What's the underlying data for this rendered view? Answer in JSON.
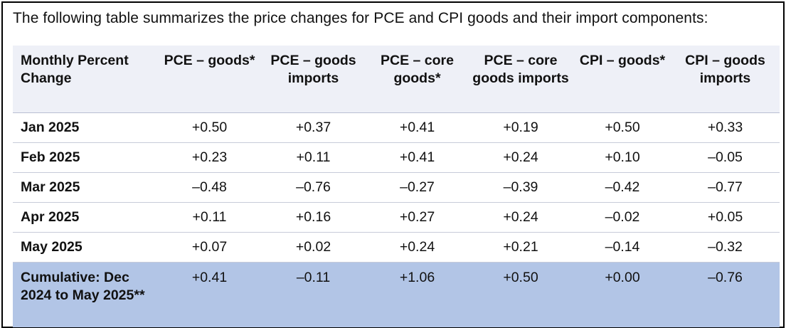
{
  "intro": "The following table summarizes the price changes for PCE and CPI goods and their import components:",
  "table": {
    "headers": [
      "Monthly Percent Change",
      "PCE – goods*",
      "PCE – goods imports",
      "PCE – core goods*",
      "PCE – core goods imports",
      "CPI – goods*",
      "CPI – goods imports"
    ],
    "rows": [
      [
        "Jan 2025",
        "+0.50",
        "+0.37",
        "+0.41",
        "+0.19",
        "+0.50",
        "+0.33"
      ],
      [
        "Feb 2025",
        "+0.23",
        "+0.11",
        "+0.41",
        "+0.24",
        "+0.10",
        "–0.05"
      ],
      [
        "Mar 2025",
        "–0.48",
        "–0.76",
        "–0.27",
        "–0.39",
        "–0.42",
        "–0.77"
      ],
      [
        "Apr 2025",
        "+0.11",
        "+0.16",
        "+0.27",
        "+0.24",
        "–0.02",
        "+0.05"
      ],
      [
        "May 2025",
        "+0.07",
        "+0.02",
        "+0.24",
        "+0.21",
        "–0.14",
        "–0.32"
      ],
      [
        "Cumulative: Dec 2024 to May 2025**",
        "+0.41",
        "–0.11",
        "+1.06",
        "+0.50",
        "+0.00",
        "–0.76"
      ]
    ]
  },
  "colors": {
    "header_bg": "#eef0f7",
    "cumulative_bg": "#b2c5e6"
  }
}
